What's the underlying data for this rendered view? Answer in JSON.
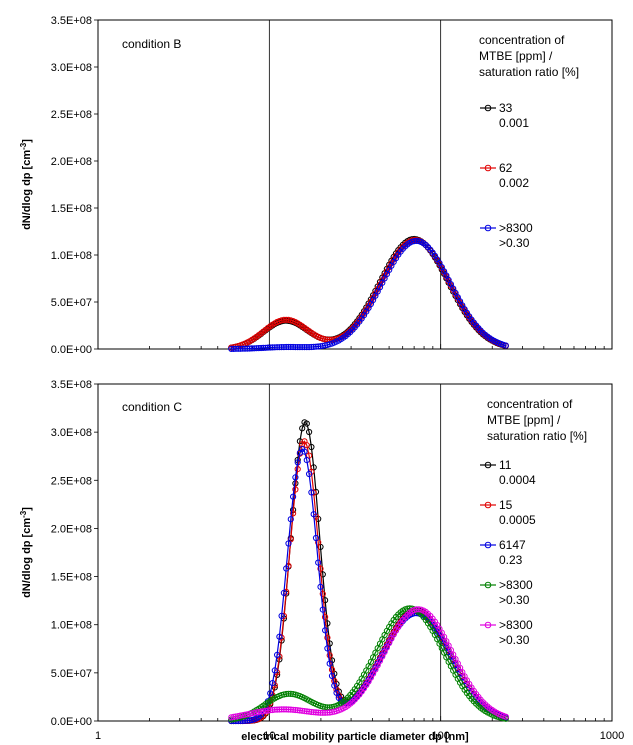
{
  "chart_data": [
    {
      "type": "line",
      "annotation": "condition B",
      "xlabel": "electrical mobility particle diameter dp [nm]",
      "ylabel": "dN/dlog dp [cm-3]",
      "x_scale": "log",
      "xlim": [
        1,
        1000
      ],
      "ylim": [
        0,
        350000000
      ],
      "y_ticks": [
        "0.0E+00",
        "5.0E+07",
        "1.0E+08",
        "1.5E+08",
        "2.0E+08",
        "2.5E+08",
        "3.0E+08",
        "3.5E+08"
      ],
      "x_ticks": [
        "1",
        "10",
        "100",
        "1000"
      ],
      "grid": "vertical major",
      "legend_title": [
        "concentration of",
        "MTBE [ppm] /",
        "saturation ratio [%]"
      ],
      "legend_position": "right",
      "series": [
        {
          "name": "33",
          "name2": "0.001",
          "color": "#000000",
          "modes": [
            {
              "peak": 30000000,
              "center": 12.5,
              "sigma": 0.13
            },
            {
              "peak": 117000000,
              "center": 70,
              "sigma": 0.2
            }
          ]
        },
        {
          "name": "62",
          "name2": "0.002",
          "color": "#e00000",
          "modes": [
            {
              "peak": 31000000,
              "center": 12.5,
              "sigma": 0.13
            },
            {
              "peak": 116000000,
              "center": 71,
              "sigma": 0.2
            }
          ]
        },
        {
          "name": ">8300",
          "name2": ">0.30",
          "color": "#0000e0",
          "modes": [
            {
              "peak": 2000000,
              "center": 12.5,
              "sigma": 0.13
            },
            {
              "peak": 115000000,
              "center": 72,
              "sigma": 0.2
            }
          ]
        }
      ],
      "x_range": [
        6,
        240
      ]
    },
    {
      "type": "line",
      "annotation": "condition C",
      "xlabel": "electrical mobility particle diameter dp [nm]",
      "ylabel": "dN/dlog dp [cm-3]",
      "x_scale": "log",
      "xlim": [
        1,
        1000
      ],
      "ylim": [
        0,
        350000000
      ],
      "y_ticks": [
        "0.0E+00",
        "5.0E+07",
        "1.0E+08",
        "1.5E+08",
        "2.0E+08",
        "2.5E+08",
        "3.0E+08",
        "3.5E+08"
      ],
      "x_ticks": [
        "1",
        "10",
        "100",
        "1000"
      ],
      "grid": "vertical major",
      "legend_title": [
        "concentration of",
        "MTBE [ppm] /",
        "saturation ratio [%]"
      ],
      "legend_position": "right",
      "series": [
        {
          "name": "11",
          "name2": "0.0004",
          "color": "#000000",
          "modes": [
            {
              "peak": 310000000,
              "center": 16.2,
              "sigma": 0.085
            },
            {
              "peak": 115000000,
              "center": 72,
              "sigma": 0.2
            }
          ]
        },
        {
          "name": "15",
          "name2": "0.0005",
          "color": "#e00000",
          "modes": [
            {
              "peak": 290000000,
              "center": 16,
              "sigma": 0.085
            },
            {
              "peak": 114000000,
              "center": 72,
              "sigma": 0.2
            }
          ]
        },
        {
          "name": "6147",
          "name2": "0.23",
          "color": "#0000e0",
          "modes": [
            {
              "peak": 282000000,
              "center": 15.6,
              "sigma": 0.088
            },
            {
              "peak": 112000000,
              "center": 72,
              "sigma": 0.2
            }
          ]
        },
        {
          "name": ">8300",
          "name2": ">0.30",
          "color": "#008000",
          "modes": [
            {
              "peak": 28000000,
              "center": 13,
              "sigma": 0.14
            },
            {
              "peak": 117000000,
              "center": 66,
              "sigma": 0.2
            }
          ]
        },
        {
          "name": ">8300",
          "name2": ">0.30",
          "color": "#e000e0",
          "modes": [
            {
              "peak": 12000000,
              "center": 12,
              "sigma": 0.2
            },
            {
              "peak": 116000000,
              "center": 74,
              "sigma": 0.2
            }
          ]
        }
      ],
      "x_range": [
        6,
        240
      ]
    }
  ]
}
